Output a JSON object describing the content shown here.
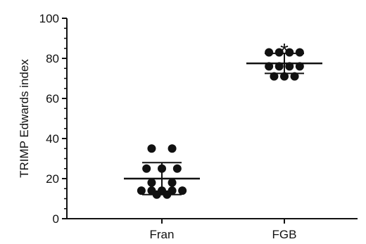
{
  "chart_data": {
    "type": "scatter",
    "title": "",
    "xlabel": "",
    "ylabel": "TRIMP Edwards index",
    "ylim": [
      0,
      100
    ],
    "yticks": [
      "0",
      "20",
      "40",
      "60",
      "80",
      "100"
    ],
    "grid": false,
    "legend": "none",
    "categories": [
      "Fran",
      "FGB"
    ],
    "groups": [
      {
        "category": "Fran",
        "points": [
          {
            "offset": -0.28,
            "y": 35
          },
          {
            "offset": 0.28,
            "y": 35
          },
          {
            "offset": -0.42,
            "y": 25
          },
          {
            "offset": 0.0,
            "y": 25
          },
          {
            "offset": 0.42,
            "y": 25
          },
          {
            "offset": -0.28,
            "y": 18
          },
          {
            "offset": 0.28,
            "y": 18
          },
          {
            "offset": -0.56,
            "y": 14
          },
          {
            "offset": -0.28,
            "y": 14
          },
          {
            "offset": 0.0,
            "y": 14
          },
          {
            "offset": 0.28,
            "y": 14
          },
          {
            "offset": 0.56,
            "y": 14
          },
          {
            "offset": -0.14,
            "y": 12
          },
          {
            "offset": 0.14,
            "y": 12
          }
        ],
        "mean": 20,
        "sd_upper": 28,
        "sd_lower": 12
      },
      {
        "category": "FGB",
        "points": [
          {
            "offset": -0.42,
            "y": 83
          },
          {
            "offset": -0.14,
            "y": 83
          },
          {
            "offset": 0.14,
            "y": 83
          },
          {
            "offset": 0.42,
            "y": 83
          },
          {
            "offset": -0.42,
            "y": 76
          },
          {
            "offset": -0.14,
            "y": 76
          },
          {
            "offset": 0.14,
            "y": 76
          },
          {
            "offset": 0.42,
            "y": 76
          },
          {
            "offset": -0.28,
            "y": 71
          },
          {
            "offset": 0.0,
            "y": 71
          },
          {
            "offset": 0.28,
            "y": 71
          }
        ],
        "mean": 77.5,
        "sd_upper": 82.5,
        "sd_lower": 72.5
      }
    ],
    "annotations": [
      {
        "text": "*",
        "category": "FGB",
        "y": 90
      }
    ]
  },
  "colors": {
    "points": "#111111",
    "axis": "#111111"
  }
}
